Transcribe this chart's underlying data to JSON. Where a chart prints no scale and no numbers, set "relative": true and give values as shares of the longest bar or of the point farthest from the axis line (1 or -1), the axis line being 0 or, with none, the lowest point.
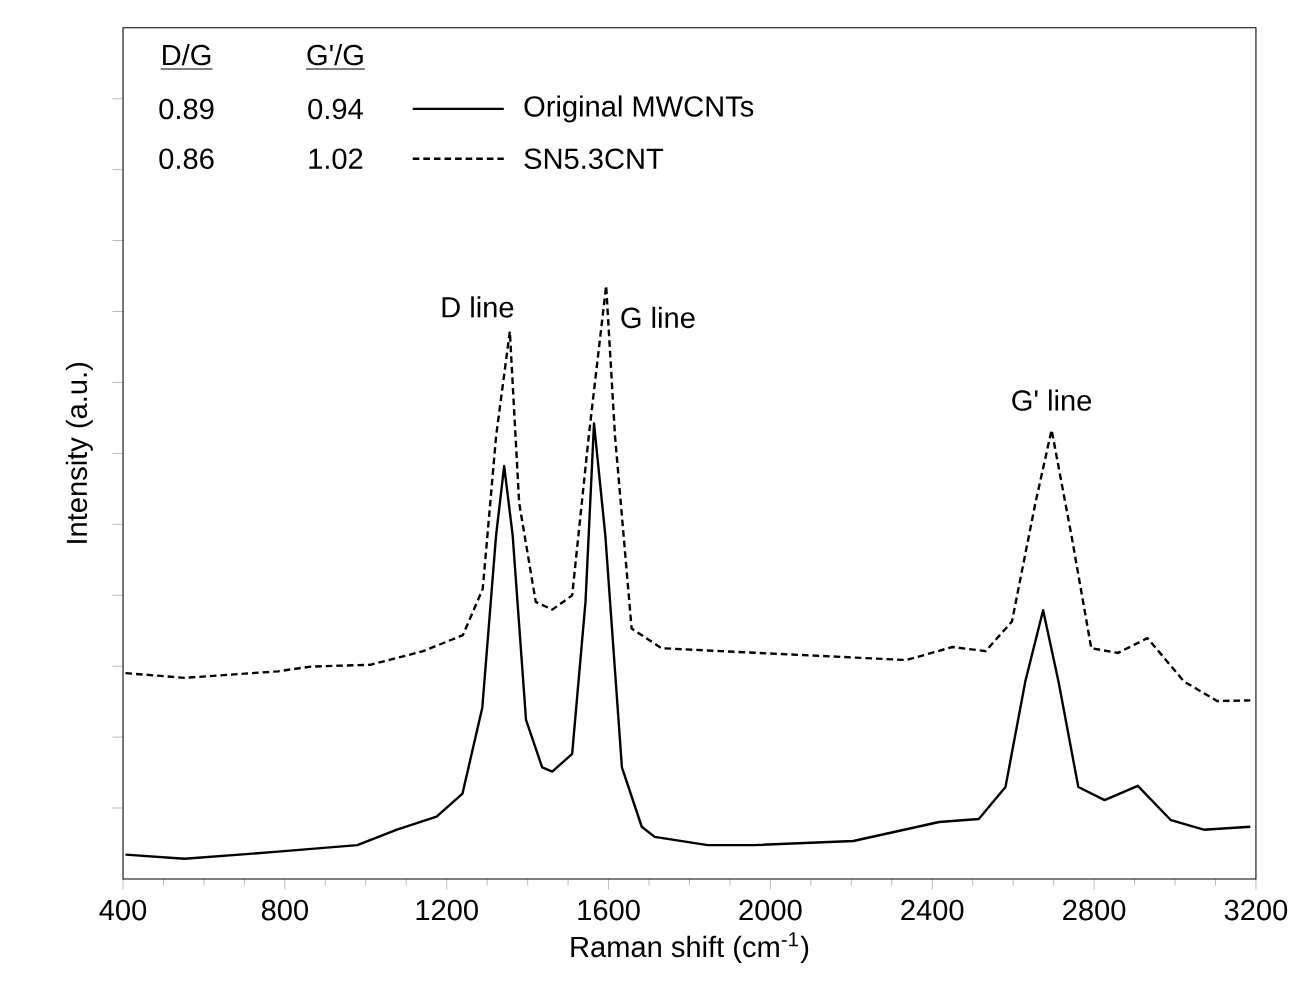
{
  "chart_data": {
    "type": "line",
    "relative": true,
    "xlabel": "Raman shift (cm$^{-1}$)",
    "ylabel": "Intensity (a.u.)",
    "xlim": [
      400,
      3200
    ],
    "xticks": [
      400,
      800,
      1200,
      1600,
      2000,
      2400,
      2800,
      3200
    ],
    "legend": "top left",
    "series": [
      {
        "name": "Original MWCNTs",
        "color": "#000000",
        "line_style": "solid",
        "x": [
          406,
          552,
          783,
          979,
          1077,
          1175,
          1239,
          1288,
          1322,
          1342,
          1363,
          1396,
          1436,
          1461,
          1510,
          1543,
          1564,
          1592,
          1633,
          1682,
          1714,
          1845,
          1960,
          2205,
          2417,
          2515,
          2581,
          2630,
          2674,
          2712,
          2761,
          2826,
          2908,
          2990,
          3071,
          3186
        ],
        "values": [
          0.041,
          0.034,
          0.046,
          0.057,
          0.083,
          0.105,
          0.144,
          0.289,
          0.579,
          0.696,
          0.579,
          0.268,
          0.188,
          0.181,
          0.211,
          0.467,
          0.768,
          0.579,
          0.188,
          0.088,
          0.071,
          0.057,
          0.057,
          0.064,
          0.096,
          0.101,
          0.155,
          0.333,
          0.453,
          0.333,
          0.155,
          0.133,
          0.157,
          0.099,
          0.083,
          0.088
        ]
      },
      {
        "name": "SN5.3CNT",
        "color": "#000000",
        "line_style": "dashed",
        "x": [
          406,
          552,
          783,
          864,
          1011,
          1142,
          1240,
          1289,
          1322,
          1356,
          1379,
          1420,
          1461,
          1510,
          1551,
          1594,
          1616,
          1657,
          1731,
          1878,
          2123,
          2336,
          2450,
          2532,
          2597,
          2655,
          2695,
          2744,
          2793,
          2859,
          2932,
          3022,
          3104,
          3186
        ],
        "values": [
          0.347,
          0.339,
          0.35,
          0.358,
          0.361,
          0.384,
          0.411,
          0.489,
          0.746,
          0.923,
          0.634,
          0.467,
          0.454,
          0.478,
          0.746,
          1,
          0.746,
          0.422,
          0.389,
          0.384,
          0.376,
          0.369,
          0.391,
          0.384,
          0.434,
          0.634,
          0.757,
          0.579,
          0.389,
          0.381,
          0.406,
          0.333,
          0.3,
          0.301
        ]
      }
    ],
    "annotations": [
      {
        "text": "D line",
        "x": 1356,
        "y": 0.923
      },
      {
        "text": "G line",
        "x": 1594,
        "y": 1
      },
      {
        "text": "G' line",
        "x": 2695,
        "y": 0.757
      },
      "D/G",
      "G'/G",
      "0.89",
      "0.94",
      "0.86",
      "1.02"
    ]
  }
}
